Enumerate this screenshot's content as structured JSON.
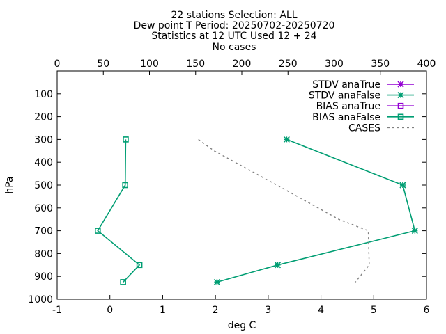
{
  "chart_data": {
    "type": "line",
    "title_lines": [
      "22 stations Selection: ALL",
      "Dew point T  Period: 20250702-20250720",
      "Statistics at 12 UTC  Used 12 + 24",
      "No cases"
    ],
    "xlabel": "deg C",
    "ylabel": "hPa",
    "xlim": [
      -1,
      6
    ],
    "ylim": [
      1000,
      0
    ],
    "x_ticks": [
      "-1",
      "0",
      "1",
      "2",
      "3",
      "4",
      "5",
      "6"
    ],
    "y_ticks": [
      "100",
      "200",
      "300",
      "400",
      "500",
      "600",
      "700",
      "800",
      "900",
      "1000"
    ],
    "x2lim": [
      0,
      400
    ],
    "x2_ticks": [
      "0",
      "50",
      "100",
      "150",
      "200",
      "250",
      "300",
      "350",
      "400"
    ],
    "legend_position": "top-right",
    "grid": false,
    "series": [
      {
        "name": "STDV anaTrue",
        "color": "#9400d3",
        "marker": "star",
        "line": "solid",
        "axis": "x1",
        "points": []
      },
      {
        "name": "STDV anaFalse",
        "color": "#009e73",
        "marker": "star",
        "line": "solid",
        "axis": "x1",
        "points": [
          {
            "x": 3.35,
            "y": 300
          },
          {
            "x": 5.55,
            "y": 500
          },
          {
            "x": 5.78,
            "y": 700
          },
          {
            "x": 3.18,
            "y": 850
          },
          {
            "x": 2.03,
            "y": 925
          }
        ]
      },
      {
        "name": "BIAS anaTrue",
        "color": "#9400d3",
        "marker": "square",
        "line": "solid",
        "axis": "x1",
        "points": []
      },
      {
        "name": "BIAS anaFalse",
        "color": "#009e73",
        "marker": "square",
        "line": "solid",
        "axis": "x1",
        "points": [
          {
            "x": 0.3,
            "y": 300
          },
          {
            "x": 0.29,
            "y": 500
          },
          {
            "x": -0.23,
            "y": 700
          },
          {
            "x": 0.56,
            "y": 850
          },
          {
            "x": 0.25,
            "y": 925
          }
        ]
      },
      {
        "name": "CASES",
        "color": "#808080",
        "marker": "none",
        "line": "dashed",
        "axis": "x2",
        "points": [
          {
            "x": 153,
            "y": 300
          },
          {
            "x": 170,
            "y": 350
          },
          {
            "x": 238,
            "y": 500
          },
          {
            "x": 305,
            "y": 650
          },
          {
            "x": 337,
            "y": 700
          },
          {
            "x": 338,
            "y": 850
          },
          {
            "x": 323,
            "y": 925
          }
        ]
      }
    ]
  }
}
